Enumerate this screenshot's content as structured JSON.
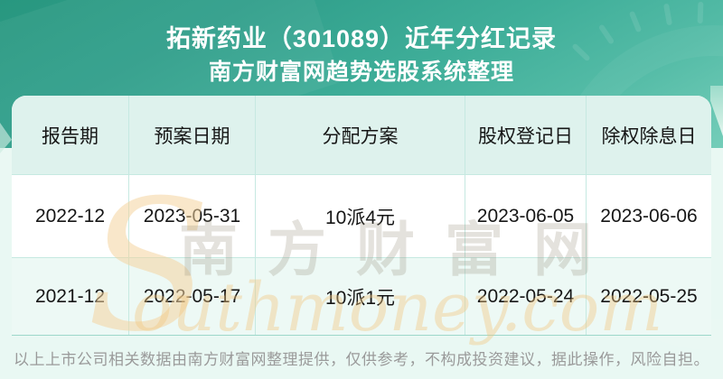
{
  "banner": {
    "title_line1": "拓新药业（301089）近年分红记录",
    "title_line2": "南方财富网趋势选股系统整理"
  },
  "table": {
    "columns": [
      "报告期",
      "预案日期",
      "分配方案",
      "股权登记日",
      "除权除息日"
    ],
    "rows": [
      [
        "2022-12",
        "2023-05-31",
        "10派4元",
        "2023-06-05",
        "2023-06-06"
      ],
      [
        "2021-12",
        "2022-05-17",
        "10派1元",
        "2022-05-24",
        "2022-05-25"
      ]
    ]
  },
  "chart_data": {
    "type": "table",
    "title": "拓新药业（301089）近年分红记录",
    "subtitle": "南方财富网趋势选股系统整理",
    "columns": [
      "报告期",
      "预案日期",
      "分配方案",
      "股权登记日",
      "除权除息日"
    ],
    "rows": [
      [
        "2022-12",
        "2023-05-31",
        "10派4元",
        "2023-06-05",
        "2023-06-06"
      ],
      [
        "2021-12",
        "2022-05-17",
        "10派1元",
        "2022-05-24",
        "2022-05-25"
      ]
    ]
  },
  "watermark": {
    "logo_s": "S",
    "cn_text": "南方财富网",
    "en_text": "outhmoney.com"
  },
  "footer": {
    "disclaimer": "以上上市公司相关数据由南方财富网整理提供，仅供参考，不构成投资建议，据此操作，风险自担。"
  },
  "colors": {
    "banner_teal_dark": "#28977f",
    "banner_teal_light": "#74cdb9",
    "page_bg": "#e9f8f3",
    "header_cell_bg": "#def2ed",
    "row_alt_bg": "#edf9f5",
    "table_line": "#c6e9e1",
    "table_outer_line": "#9cd7ca",
    "cell_text": "#161616",
    "watermark_orange": "#f2c67e",
    "footer_gray": "#9a9a9a",
    "title_white": "#ffffff"
  }
}
